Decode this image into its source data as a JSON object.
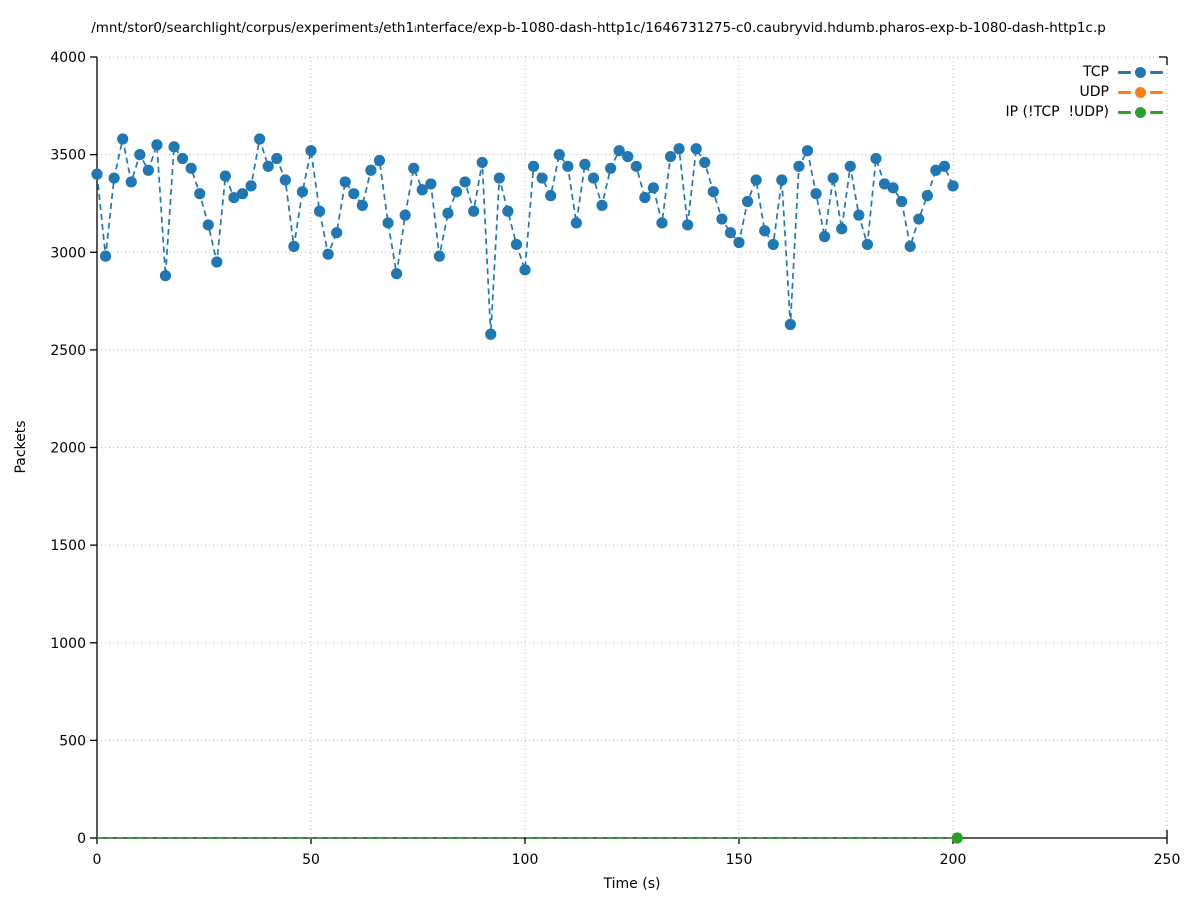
{
  "title": "/mnt/stor0/searchlight/corpus/experiment₃/eth1ᵢnterface/exp-b-1080-dash-http1c/1646731275-c0.caubryvid.hdumb.pharos-exp-b-1080-dash-http1c.p",
  "axes": {
    "xlabel": "Time (s)",
    "ylabel": "Packets",
    "x_ticks": [
      0,
      50,
      100,
      150,
      200,
      250
    ],
    "y_ticks": [
      0,
      500,
      1000,
      1500,
      2000,
      2500,
      3000,
      3500,
      4000
    ],
    "xlim": [
      0,
      250
    ],
    "ylim": [
      0,
      4000
    ]
  },
  "legend": {
    "entries": [
      {
        "label": "TCP",
        "color": "#1f77b4"
      },
      {
        "label": "UDP",
        "color": "#ff7f0e"
      },
      {
        "label": "IP (!TCP  !UDP)",
        "color": "#2ca02c"
      }
    ]
  },
  "colors": {
    "tcp": "#1f77b4",
    "udp": "#ff7f0e",
    "ip_other": "#2ca02c",
    "grid": "#bbbbbb",
    "axis": "#000000"
  },
  "chart_data": {
    "type": "line",
    "title": "/mnt/stor0/searchlight/corpus/experiment₃/eth1ᵢnterface/exp-b-1080-dash-http1c/1646731275-c0.caubryvid.hdumb.pharos-exp-b-1080-dash-http1c.p",
    "xlabel": "Time (s)",
    "ylabel": "Packets",
    "xlim": [
      0,
      250
    ],
    "ylim": [
      0,
      4000
    ],
    "grid": "dotted",
    "legend_position": "upper right",
    "series": [
      {
        "name": "TCP",
        "color": "#1f77b4",
        "style": "dashed-line-with-circle-markers",
        "x": [
          0,
          2,
          4,
          6,
          8,
          10,
          12,
          14,
          16,
          18,
          20,
          22,
          24,
          26,
          28,
          30,
          32,
          34,
          36,
          38,
          40,
          42,
          44,
          46,
          48,
          50,
          52,
          54,
          56,
          58,
          60,
          62,
          64,
          66,
          68,
          70,
          72,
          74,
          76,
          78,
          80,
          82,
          84,
          86,
          88,
          90,
          92,
          94,
          96,
          98,
          100,
          102,
          104,
          106,
          108,
          110,
          112,
          114,
          116,
          118,
          120,
          122,
          124,
          126,
          128,
          130,
          132,
          134,
          136,
          138,
          140,
          142,
          144,
          146,
          148,
          150,
          152,
          154,
          156,
          158,
          160,
          162,
          164,
          166,
          168,
          170,
          172,
          174,
          176,
          178,
          180,
          182,
          184,
          186,
          188,
          190,
          192,
          194,
          196,
          198,
          200
        ],
        "values": [
          3400,
          2980,
          3380,
          3580,
          3360,
          3500,
          3420,
          3550,
          2880,
          3540,
          3480,
          3430,
          3300,
          3140,
          2950,
          3390,
          3280,
          3300,
          3340,
          3580,
          3440,
          3480,
          3370,
          3030,
          3310,
          3520,
          3210,
          2990,
          3100,
          3360,
          3300,
          3240,
          3420,
          3470,
          3150,
          2890,
          3190,
          3430,
          3320,
          3350,
          2980,
          3200,
          3310,
          3360,
          3210,
          3460,
          2580,
          3380,
          3210,
          3040,
          2910,
          3440,
          3380,
          3290,
          3500,
          3440,
          3150,
          3450,
          3380,
          3240,
          3430,
          3520,
          3490,
          3440,
          3280,
          3330,
          3150,
          3490,
          3530,
          3140,
          3530,
          3460,
          3310,
          3170,
          3100,
          3050,
          3260,
          3370,
          3110,
          3040,
          3370,
          2630,
          3440,
          3520,
          3300,
          3080,
          3380,
          3120,
          3440,
          3190,
          3040,
          3480,
          3350,
          3330,
          3260,
          3030,
          3170,
          3290,
          3420,
          3440,
          3340
        ]
      },
      {
        "name": "UDP",
        "color": "#ff7f0e",
        "style": "dashed-line-with-circle-markers",
        "x": [],
        "values": []
      },
      {
        "name": "IP (!TCP  !UDP)",
        "color": "#2ca02c",
        "style": "dashed-line-with-circle-markers",
        "x": [
          0,
          201
        ],
        "values": [
          0,
          0
        ],
        "markers": [
          [
            201,
            0
          ]
        ]
      }
    ]
  }
}
